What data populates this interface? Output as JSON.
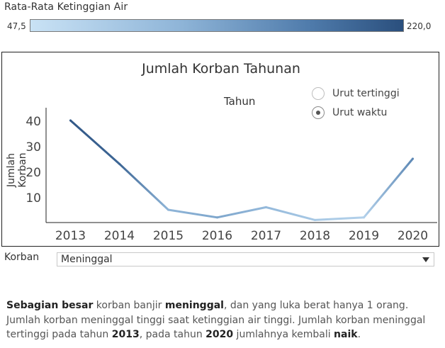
{
  "legend": {
    "title": "Rata-Rata Ketinggian Air",
    "min_label": "47,5",
    "max_label": "220,0",
    "colors": [
      "#c9e2f5",
      "#8fb5d8",
      "#4f7bab",
      "#2a4f7d"
    ]
  },
  "sort_options": [
    {
      "label": "Urut tertinggi",
      "selected": false
    },
    {
      "label": "Urut waktu",
      "selected": true
    }
  ],
  "filter": {
    "label": "Korban",
    "value": "Meninggal"
  },
  "note": {
    "parts": [
      {
        "text": "Sebagian besar",
        "bold": true
      },
      {
        "text": " korban banjir ",
        "bold": false
      },
      {
        "text": "meninggal",
        "bold": true
      },
      {
        "text": ", dan yang luka berat hanya 1 orang. Jumlah korban meninggal tinggi saat ketinggian air tinggi. Jumlah korban meninggal tertinggi pada tahun ",
        "bold": false
      },
      {
        "text": "2013",
        "bold": true
      },
      {
        "text": ", pada tahun ",
        "bold": false
      },
      {
        "text": "2020",
        "bold": true
      },
      {
        "text": " jumlahnya kembali ",
        "bold": false
      },
      {
        "text": "naik",
        "bold": true
      },
      {
        "text": ".",
        "bold": false
      }
    ]
  },
  "chart_data": {
    "type": "line",
    "title": "Jumlah Korban Tahunan",
    "xlabel": "Tahun",
    "ylabel": "Jumlah Korban",
    "categories": [
      "2013",
      "2014",
      "2015",
      "2016",
      "2017",
      "2018",
      "2019",
      "2020"
    ],
    "series": [
      {
        "values": [
          40,
          23,
          5,
          2,
          6,
          1,
          2,
          25
        ],
        "color_values": [
          208,
          190,
          105,
          120,
          100,
          80,
          70,
          150
        ]
      }
    ],
    "ylim": [
      0,
      45
    ],
    "yticks": [
      10,
      20,
      30,
      40
    ],
    "grid": false,
    "color_range": [
      47.5,
      220.0
    ]
  }
}
